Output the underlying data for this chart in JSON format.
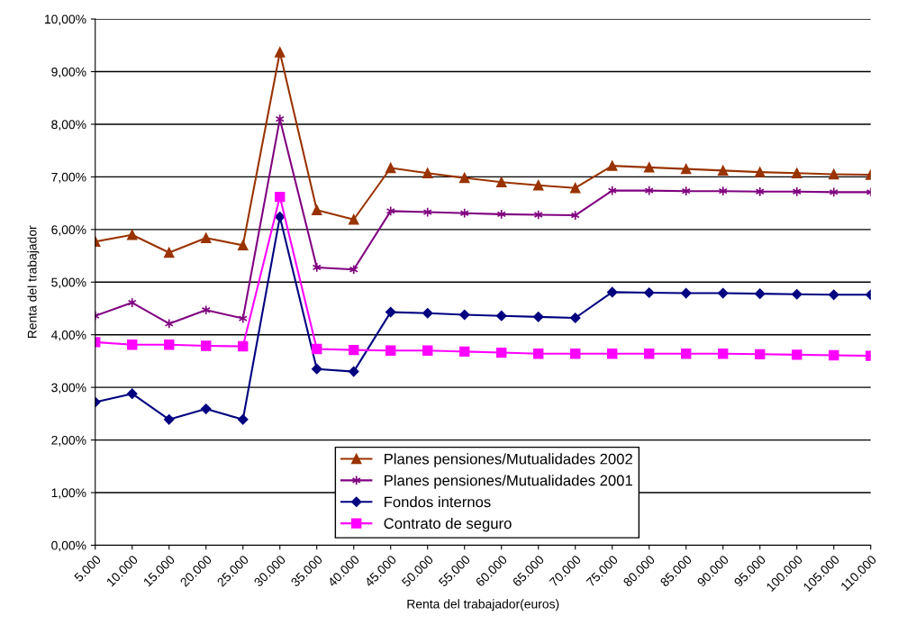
{
  "chart_data": {
    "type": "line",
    "xlabel": "Renta del trabajador(euros)",
    "ylabel": "Renta del trabajador",
    "categories": [
      "5.000",
      "10.000",
      "15.000",
      "20.000",
      "25.000",
      "30.000",
      "35.000",
      "40.000",
      "45.000",
      "50.000",
      "55.000",
      "60.000",
      "65.000",
      "70.000",
      "75.000",
      "80.000",
      "85.000",
      "90.000",
      "95.000",
      "100.000",
      "105.000",
      "110.000"
    ],
    "series": [
      {
        "name": "Planes pensiones/Mutualidades 2002",
        "color": "#993300",
        "marker": "triangle",
        "values": [
          5.77,
          5.9,
          5.56,
          5.84,
          5.7,
          9.37,
          6.37,
          6.19,
          7.17,
          7.07,
          6.98,
          6.9,
          6.84,
          6.79,
          7.21,
          7.18,
          7.15,
          7.12,
          7.09,
          7.07,
          7.05,
          7.04
        ]
      },
      {
        "name": "Planes pensiones/Mutualidades 2001",
        "color": "#800080",
        "marker": "cross",
        "values": [
          4.36,
          4.61,
          4.21,
          4.47,
          4.31,
          8.1,
          5.28,
          5.24,
          6.35,
          6.33,
          6.31,
          6.29,
          6.28,
          6.27,
          6.74,
          6.74,
          6.73,
          6.73,
          6.72,
          6.72,
          6.71,
          6.71
        ]
      },
      {
        "name": "Fondos internos",
        "color": "#000080",
        "marker": "diamond",
        "values": [
          2.72,
          2.88,
          2.39,
          2.59,
          2.39,
          6.24,
          3.35,
          3.3,
          4.43,
          4.41,
          4.38,
          4.36,
          4.34,
          4.32,
          4.81,
          4.8,
          4.79,
          4.79,
          4.78,
          4.77,
          4.76,
          4.76
        ]
      },
      {
        "name": "Contrato de seguro",
        "color": "#ff00ff",
        "marker": "square",
        "values": [
          3.86,
          3.81,
          3.81,
          3.79,
          3.78,
          6.62,
          3.73,
          3.71,
          3.7,
          3.7,
          3.68,
          3.66,
          3.64,
          3.64,
          3.64,
          3.64,
          3.64,
          3.64,
          3.63,
          3.62,
          3.61,
          3.6
        ]
      }
    ],
    "ylim": [
      0,
      10
    ],
    "yticks": [
      {
        "value": 0,
        "label": "0,00%"
      },
      {
        "value": 1,
        "label": "1,00%"
      },
      {
        "value": 2,
        "label": "2,00%"
      },
      {
        "value": 3,
        "label": "3,00%"
      },
      {
        "value": 4,
        "label": "4,00%"
      },
      {
        "value": 5,
        "label": "5,00%"
      },
      {
        "value": 6,
        "label": "6,00%"
      },
      {
        "value": 7,
        "label": "7,00%"
      },
      {
        "value": 8,
        "label": "8,00%"
      },
      {
        "value": 9,
        "label": "9,00%"
      },
      {
        "value": 10,
        "label": "10,00%"
      }
    ],
    "grid": "y",
    "legend": "bottom right",
    "line_style": "solid"
  }
}
